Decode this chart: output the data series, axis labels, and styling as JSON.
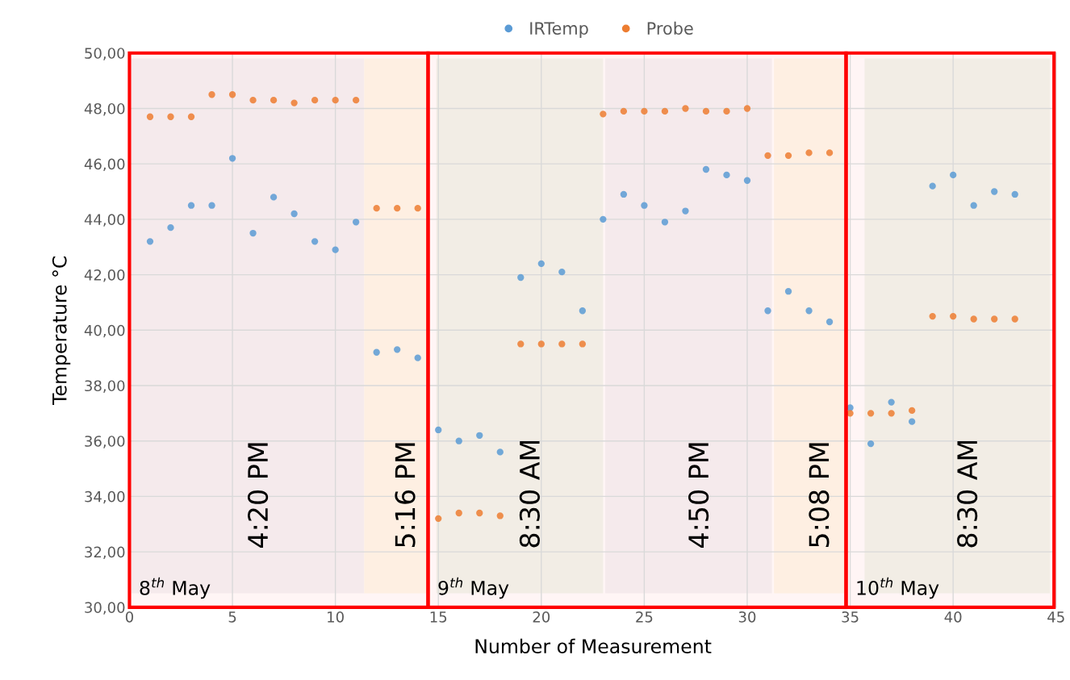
{
  "chart_data": {
    "type": "scatter",
    "xlabel": "Number of Measurement",
    "ylabel": "Temperature °C",
    "xlim": [
      0,
      45
    ],
    "ylim": [
      30,
      50
    ],
    "xticks": [
      0,
      5,
      10,
      15,
      20,
      25,
      30,
      35,
      40,
      45
    ],
    "yticks": [
      {
        "value": 30,
        "label": "30,00"
      },
      {
        "value": 32,
        "label": "32,00"
      },
      {
        "value": 34,
        "label": "34,00"
      },
      {
        "value": 36,
        "label": "36,00"
      },
      {
        "value": 38,
        "label": "38,00"
      },
      {
        "value": 40,
        "label": "40,00"
      },
      {
        "value": 42,
        "label": "42,00"
      },
      {
        "value": 44,
        "label": "44,00"
      },
      {
        "value": 46,
        "label": "46,00"
      },
      {
        "value": 48,
        "label": "48,00"
      },
      {
        "value": 50,
        "label": "50,00"
      }
    ],
    "x": [
      1,
      2,
      3,
      4,
      5,
      6,
      7,
      8,
      9,
      10,
      11,
      12,
      13,
      14,
      15,
      16,
      17,
      18,
      19,
      20,
      21,
      22,
      23,
      24,
      25,
      26,
      27,
      28,
      29,
      30,
      31,
      32,
      33,
      34,
      35,
      36,
      37,
      38,
      39,
      40,
      41,
      42,
      43
    ],
    "series": [
      {
        "name": "IRTemp",
        "color": "#5b9bd5",
        "values": [
          43.2,
          43.7,
          44.5,
          44.5,
          46.2,
          43.5,
          44.8,
          44.2,
          43.2,
          42.9,
          43.9,
          39.2,
          39.3,
          39.0,
          36.4,
          36.0,
          36.2,
          35.6,
          41.9,
          42.4,
          42.1,
          40.7,
          44.0,
          44.9,
          44.5,
          43.9,
          44.3,
          45.8,
          45.6,
          45.4,
          40.7,
          41.4,
          40.7,
          40.3,
          37.2,
          35.9,
          37.4,
          36.7,
          45.2,
          45.6,
          44.5,
          45.0,
          44.9
        ]
      },
      {
        "name": "Probe",
        "color": "#ed7d31",
        "values": [
          47.7,
          47.7,
          47.7,
          48.5,
          48.5,
          48.3,
          48.3,
          48.2,
          48.3,
          48.3,
          48.3,
          44.4,
          44.4,
          44.4,
          33.2,
          33.4,
          33.4,
          33.3,
          39.5,
          39.5,
          39.5,
          39.5,
          47.8,
          47.9,
          47.9,
          47.9,
          48.0,
          47.9,
          47.9,
          48.0,
          46.3,
          46.3,
          46.4,
          46.4,
          37.0,
          37.0,
          37.0,
          37.1,
          40.5,
          40.5,
          40.4,
          40.4,
          40.4
        ]
      }
    ],
    "bands": [
      {
        "axis": "x",
        "from": 0.1,
        "to": 11.4,
        "label": "4:20 PM",
        "color": "#f5f4f6"
      },
      {
        "axis": "x",
        "from": 11.4,
        "to": 14.4,
        "label": "5:16 PM",
        "color": "#fef9ec"
      },
      {
        "axis": "x",
        "from": 14.9,
        "to": 23.0,
        "label": "8:30 AM",
        "color": "#f2f7ef"
      },
      {
        "axis": "x",
        "from": 23.1,
        "to": 31.2,
        "label": "4:50 PM",
        "color": "#f5f4f6"
      },
      {
        "axis": "x",
        "from": 31.3,
        "to": 34.7,
        "label": "5:08 PM",
        "color": "#fef9ec"
      },
      {
        "axis": "x",
        "from": 35.7,
        "to": 44.7,
        "label": "8:30 AM",
        "color": "#f2f7ef"
      },
      {
        "axis": "x",
        "from": 0,
        "to": 14.5,
        "label": "8$^{th}$ May",
        "color": "#ff0000"
      },
      {
        "axis": "x",
        "from": 14.5,
        "to": 34.8,
        "label": "9$^{th}$ May",
        "color": "#ff0000"
      },
      {
        "axis": "x",
        "from": 34.8,
        "to": 44.9,
        "label": "10$^{th}$ May",
        "color": "#ff0000"
      }
    ],
    "marker": "circle",
    "grid": true,
    "legend": "top"
  }
}
